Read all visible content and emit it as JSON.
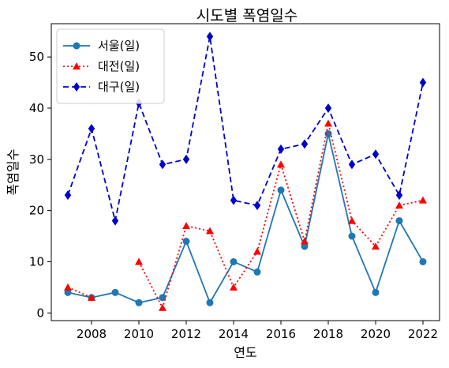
{
  "chart_data": {
    "type": "line",
    "title": "시도별 폭염일수",
    "xlabel": "연도",
    "ylabel": "폭염일수",
    "xlim": [
      2006.3,
      2022.7
    ],
    "ylim": [
      -1.5,
      56.5
    ],
    "xticks": [
      2008,
      2010,
      2012,
      2014,
      2016,
      2018,
      2020,
      2022
    ],
    "yticks": [
      0,
      10,
      20,
      30,
      40,
      50
    ],
    "grid": false,
    "legend_position": "top-left",
    "series": [
      {
        "name": "서울(일)",
        "color": "#1f77b4",
        "line_style": "solid",
        "marker": "circle",
        "x": [
          2007,
          2008,
          2009,
          2010,
          2011,
          2012,
          2013,
          2014,
          2015,
          2016,
          2017,
          2018,
          2019,
          2020,
          2021,
          2022
        ],
        "y": [
          4,
          3,
          4,
          2,
          3,
          14,
          2,
          10,
          8,
          24,
          13,
          35,
          15,
          4,
          18,
          10
        ]
      },
      {
        "name": "대전(일)",
        "color": "#ff0000",
        "line_style": "dotted",
        "marker": "triangle",
        "x": [
          2007,
          2008,
          2009,
          2010,
          2011,
          2012,
          2013,
          2014,
          2015,
          2016,
          2017,
          2018,
          2019,
          2020,
          2021,
          2022
        ],
        "y": [
          5,
          3,
          null,
          10,
          1,
          17,
          16,
          5,
          12,
          29,
          14,
          37,
          18,
          13,
          21,
          22
        ]
      },
      {
        "name": "대구(일)",
        "color": "#0000cc",
        "line_style": "dashed",
        "marker": "diamond",
        "x": [
          2007,
          2008,
          2009,
          2010,
          2011,
          2012,
          2013,
          2014,
          2015,
          2016,
          2017,
          2018,
          2019,
          2020,
          2021,
          2022
        ],
        "y": [
          23,
          36,
          18,
          41,
          29,
          30,
          54,
          22,
          21,
          32,
          33,
          40,
          29,
          31,
          23,
          45
        ]
      }
    ]
  }
}
